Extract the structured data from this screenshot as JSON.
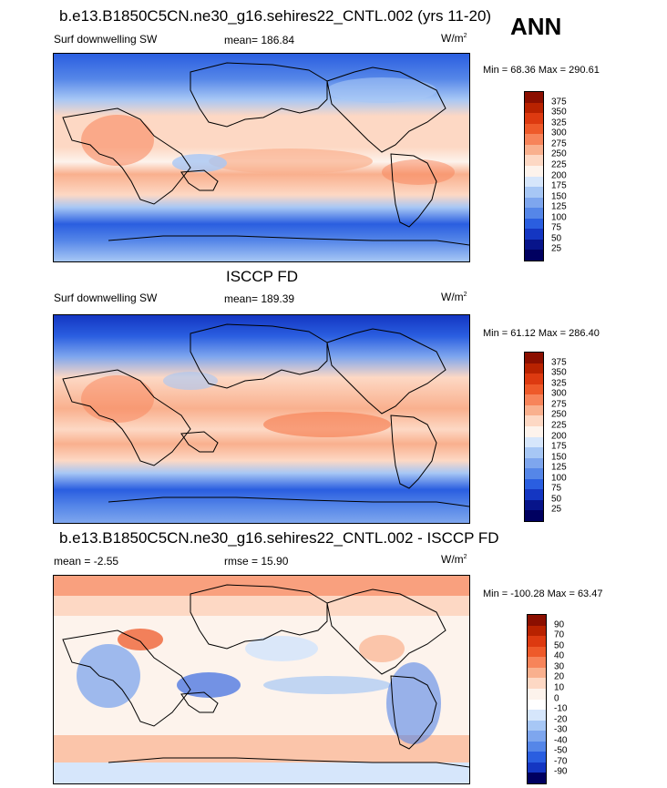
{
  "season": "ANN",
  "panels": [
    {
      "title": "b.e13.B1850C5CN.ne30_g16.sehires22_CNTL.002 (yrs 11-20)",
      "left_label": "Surf downwelling SW",
      "center_label": "mean= 186.84",
      "units": "W/m",
      "units_exp": "2",
      "minmax": "Min =  68.36 Max = 290.61",
      "colorbar_labels": [
        "375",
        "350",
        "325",
        "300",
        "275",
        "250",
        "225",
        "200",
        "175",
        "150",
        "125",
        "100",
        "75",
        "50",
        "25"
      ]
    },
    {
      "title": "ISCCP FD",
      "left_label": "Surf downwelling SW",
      "center_label": "mean= 189.39",
      "units": "W/m",
      "units_exp": "2",
      "minmax": "Min =  61.12 Max = 286.40",
      "colorbar_labels": [
        "375",
        "350",
        "325",
        "300",
        "275",
        "250",
        "225",
        "200",
        "175",
        "150",
        "125",
        "100",
        "75",
        "50",
        "25"
      ]
    },
    {
      "title": "b.e13.B1850C5CN.ne30_g16.sehires22_CNTL.002 - ISCCP FD",
      "left_label": "mean =  -2.55",
      "center_label": "rmse =  15.90",
      "units": "W/m",
      "units_exp": "2",
      "minmax": "Min = -100.28 Max =  63.47",
      "colorbar_labels": [
        "90",
        "70",
        "50",
        "40",
        "30",
        "20",
        "10",
        "0",
        "-10",
        "-20",
        "-30",
        "-40",
        "-50",
        "-70",
        "-90"
      ]
    }
  ],
  "colors": {
    "abs_scale": [
      "#8b0f00",
      "#b82200",
      "#dd3a10",
      "#ee5a2a",
      "#f7845a",
      "#f9b08e",
      "#fdd8c4",
      "#fdf3ec",
      "#d6e6fb",
      "#a7c7f5",
      "#7ea6ee",
      "#5586e8",
      "#2a5ee0",
      "#1436c2",
      "#07148a",
      "#000060"
    ],
    "diff_scale": [
      "#8b0f00",
      "#b82200",
      "#dd3a10",
      "#ee5a2a",
      "#f7845a",
      "#f9b08e",
      "#fdd8c4",
      "#fdf3ec",
      "#ffffff",
      "#d6e6fb",
      "#a7c7f5",
      "#7ea6ee",
      "#5586e8",
      "#2a5ee0",
      "#1436c2",
      "#000060"
    ]
  }
}
